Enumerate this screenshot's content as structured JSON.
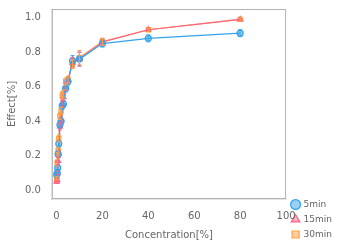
{
  "chart_data": {
    "type": "line",
    "xlabel": "Concentration[%]",
    "ylabel": "Effect[%]",
    "x": [
      0.1,
      0.3,
      0.5,
      0.7,
      1.0,
      1.5,
      2.0,
      2.5,
      3.0,
      4.0,
      5.0,
      7.0,
      10.0,
      20.0,
      40.0,
      80.0
    ],
    "series": [
      {
        "name": "5min",
        "marker": "circle",
        "line_style": "solid",
        "values": [
          0.09,
          0.1,
          0.13,
          0.21,
          0.27,
          0.38,
          0.4,
          0.49,
          0.5,
          0.59,
          0.63,
          0.75,
          0.76,
          0.85,
          0.88,
          0.91
        ],
        "yerr": [
          0.01,
          0.01,
          0.01,
          0.02,
          0.02,
          0.02,
          0.02,
          0.02,
          0.02,
          0.02,
          0.02,
          0.03,
          0.04,
          0.02,
          0.02,
          0.02
        ]
      },
      {
        "name": "15min",
        "marker": "triangle",
        "line_style": "solid",
        "values": [
          0.05,
          0.06,
          0.1,
          0.17,
          0.21,
          0.37,
          0.41,
          0.5,
          0.54,
          0.6,
          0.64,
          0.74,
          0.76,
          0.86,
          0.93,
          0.99
        ],
        "yerr": [
          0.01,
          0.01,
          0.01,
          0.02,
          0.02,
          0.02,
          0.02,
          0.02,
          0.02,
          0.02,
          0.02,
          0.03,
          0.04,
          0.02,
          0.01,
          0.01
        ]
      },
      {
        "name": "30min",
        "marker": "square",
        "line_style": "solid",
        "values": [
          0.07,
          0.16,
          0.21,
          0.23,
          0.3,
          0.43,
          0.46,
          0.55,
          0.56,
          0.63,
          0.64,
          0.73,
          0.77,
          0.86,
          0.93,
          0.99
        ],
        "yerr": [
          0.01,
          0.02,
          0.01,
          0.02,
          0.02,
          0.02,
          0.02,
          0.02,
          0.02,
          0.02,
          0.02,
          0.025,
          0.04,
          0.02,
          0.01,
          0.01
        ]
      }
    ],
    "xlim": [
      -2,
      100
    ],
    "ylim": [
      -0.05,
      1.05
    ],
    "xticks": [
      0,
      20,
      40,
      60,
      80,
      100
    ],
    "yticks": [
      {
        "value": 0.0,
        "label": "0.0"
      },
      0.2,
      0.4,
      0.6,
      0.8,
      {
        "value": 1.0,
        "label": "1.0"
      }
    ],
    "grid": false,
    "legend": "lower right"
  }
}
